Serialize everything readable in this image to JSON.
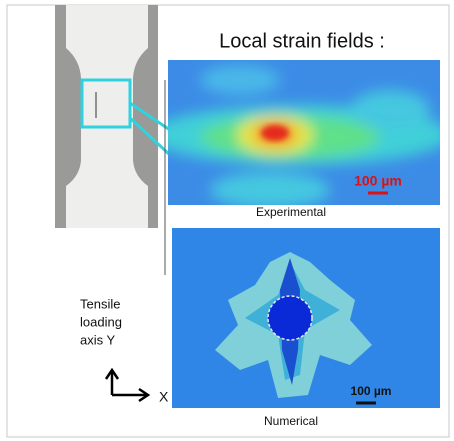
{
  "title": "Local strain fields :",
  "panels": [
    {
      "label": "Experimental",
      "scale_bar": "100 µm"
    },
    {
      "label": "Numerical",
      "scale_bar": "100 µm"
    }
  ],
  "axis_note": {
    "lines": [
      "Tensile",
      "loading",
      "axis Y"
    ],
    "x_label": "X"
  }
}
